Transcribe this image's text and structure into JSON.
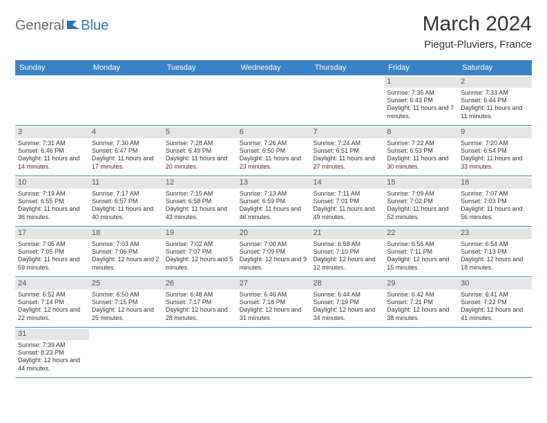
{
  "logo": {
    "part1": "General",
    "part2": "Blue"
  },
  "title": "March 2024",
  "location": "Piegut-Pluviers, France",
  "colors": {
    "header_bg": "#3b82c4",
    "header_text": "#ffffff",
    "daynum_bg": "#e5e5e5",
    "divider": "#3b82c4",
    "logo_gray": "#6a6a6a",
    "logo_blue": "#2a73b8"
  },
  "weekdays": [
    "Sunday",
    "Monday",
    "Tuesday",
    "Wednesday",
    "Thursday",
    "Friday",
    "Saturday"
  ],
  "weeks": [
    [
      null,
      null,
      null,
      null,
      null,
      {
        "n": "1",
        "sr": "Sunrise: 7:35 AM",
        "ss": "Sunset: 6:43 PM",
        "dl": "Daylight: 11 hours and 7 minutes."
      },
      {
        "n": "2",
        "sr": "Sunrise: 7:33 AM",
        "ss": "Sunset: 6:44 PM",
        "dl": "Daylight: 11 hours and 11 minutes."
      }
    ],
    [
      {
        "n": "3",
        "sr": "Sunrise: 7:31 AM",
        "ss": "Sunset: 6:46 PM",
        "dl": "Daylight: 11 hours and 14 minutes."
      },
      {
        "n": "4",
        "sr": "Sunrise: 7:30 AM",
        "ss": "Sunset: 6:47 PM",
        "dl": "Daylight: 11 hours and 17 minutes."
      },
      {
        "n": "5",
        "sr": "Sunrise: 7:28 AM",
        "ss": "Sunset: 6:49 PM",
        "dl": "Daylight: 11 hours and 20 minutes."
      },
      {
        "n": "6",
        "sr": "Sunrise: 7:26 AM",
        "ss": "Sunset: 6:50 PM",
        "dl": "Daylight: 11 hours and 23 minutes."
      },
      {
        "n": "7",
        "sr": "Sunrise: 7:24 AM",
        "ss": "Sunset: 6:51 PM",
        "dl": "Daylight: 11 hours and 27 minutes."
      },
      {
        "n": "8",
        "sr": "Sunrise: 7:22 AM",
        "ss": "Sunset: 6:53 PM",
        "dl": "Daylight: 11 hours and 30 minutes."
      },
      {
        "n": "9",
        "sr": "Sunrise: 7:20 AM",
        "ss": "Sunset: 6:54 PM",
        "dl": "Daylight: 11 hours and 33 minutes."
      }
    ],
    [
      {
        "n": "10",
        "sr": "Sunrise: 7:19 AM",
        "ss": "Sunset: 6:55 PM",
        "dl": "Daylight: 11 hours and 36 minutes."
      },
      {
        "n": "11",
        "sr": "Sunrise: 7:17 AM",
        "ss": "Sunset: 6:57 PM",
        "dl": "Daylight: 11 hours and 40 minutes."
      },
      {
        "n": "12",
        "sr": "Sunrise: 7:15 AM",
        "ss": "Sunset: 6:58 PM",
        "dl": "Daylight: 11 hours and 43 minutes."
      },
      {
        "n": "13",
        "sr": "Sunrise: 7:13 AM",
        "ss": "Sunset: 6:59 PM",
        "dl": "Daylight: 11 hours and 46 minutes."
      },
      {
        "n": "14",
        "sr": "Sunrise: 7:11 AM",
        "ss": "Sunset: 7:01 PM",
        "dl": "Daylight: 11 hours and 49 minutes."
      },
      {
        "n": "15",
        "sr": "Sunrise: 7:09 AM",
        "ss": "Sunset: 7:02 PM",
        "dl": "Daylight: 11 hours and 52 minutes."
      },
      {
        "n": "16",
        "sr": "Sunrise: 7:07 AM",
        "ss": "Sunset: 7:03 PM",
        "dl": "Daylight: 11 hours and 56 minutes."
      }
    ],
    [
      {
        "n": "17",
        "sr": "Sunrise: 7:05 AM",
        "ss": "Sunset: 7:05 PM",
        "dl": "Daylight: 11 hours and 59 minutes."
      },
      {
        "n": "18",
        "sr": "Sunrise: 7:03 AM",
        "ss": "Sunset: 7:06 PM",
        "dl": "Daylight: 12 hours and 2 minutes."
      },
      {
        "n": "19",
        "sr": "Sunrise: 7:02 AM",
        "ss": "Sunset: 7:07 PM",
        "dl": "Daylight: 12 hours and 5 minutes."
      },
      {
        "n": "20",
        "sr": "Sunrise: 7:00 AM",
        "ss": "Sunset: 7:09 PM",
        "dl": "Daylight: 12 hours and 9 minutes."
      },
      {
        "n": "21",
        "sr": "Sunrise: 6:58 AM",
        "ss": "Sunset: 7:10 PM",
        "dl": "Daylight: 12 hours and 12 minutes."
      },
      {
        "n": "22",
        "sr": "Sunrise: 6:56 AM",
        "ss": "Sunset: 7:11 PM",
        "dl": "Daylight: 12 hours and 15 minutes."
      },
      {
        "n": "23",
        "sr": "Sunrise: 6:54 AM",
        "ss": "Sunset: 7:13 PM",
        "dl": "Daylight: 12 hours and 18 minutes."
      }
    ],
    [
      {
        "n": "24",
        "sr": "Sunrise: 6:52 AM",
        "ss": "Sunset: 7:14 PM",
        "dl": "Daylight: 12 hours and 22 minutes."
      },
      {
        "n": "25",
        "sr": "Sunrise: 6:50 AM",
        "ss": "Sunset: 7:15 PM",
        "dl": "Daylight: 12 hours and 25 minutes."
      },
      {
        "n": "26",
        "sr": "Sunrise: 6:48 AM",
        "ss": "Sunset: 7:17 PM",
        "dl": "Daylight: 12 hours and 28 minutes."
      },
      {
        "n": "27",
        "sr": "Sunrise: 6:46 AM",
        "ss": "Sunset: 7:18 PM",
        "dl": "Daylight: 12 hours and 31 minutes."
      },
      {
        "n": "28",
        "sr": "Sunrise: 6:44 AM",
        "ss": "Sunset: 7:19 PM",
        "dl": "Daylight: 12 hours and 34 minutes."
      },
      {
        "n": "29",
        "sr": "Sunrise: 6:42 AM",
        "ss": "Sunset: 7:21 PM",
        "dl": "Daylight: 12 hours and 38 minutes."
      },
      {
        "n": "30",
        "sr": "Sunrise: 6:41 AM",
        "ss": "Sunset: 7:22 PM",
        "dl": "Daylight: 12 hours and 41 minutes."
      }
    ],
    [
      {
        "n": "31",
        "sr": "Sunrise: 7:39 AM",
        "ss": "Sunset: 8:23 PM",
        "dl": "Daylight: 12 hours and 44 minutes."
      },
      null,
      null,
      null,
      null,
      null,
      null
    ]
  ]
}
